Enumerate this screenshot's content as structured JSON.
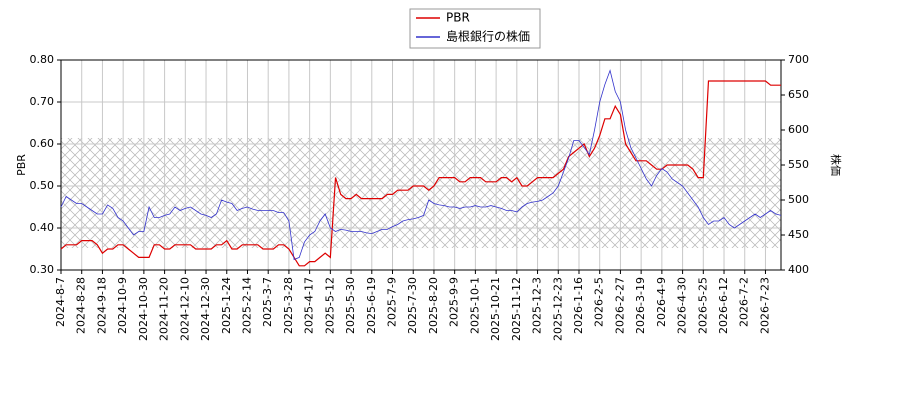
{
  "chart_data": {
    "type": "line",
    "ylabel": "PBR",
    "y2label": "株価",
    "legend": "top",
    "grid": true,
    "ylim": [
      0.3,
      0.8
    ],
    "yticks": [
      {
        "value": 0.3,
        "label": "0.30"
      },
      {
        "value": 0.4,
        "label": "0.40"
      },
      {
        "value": 0.5,
        "label": "0.50"
      },
      {
        "value": 0.6,
        "label": "0.60"
      },
      {
        "value": 0.7,
        "label": "0.70"
      },
      {
        "value": 0.8,
        "label": "0.80"
      }
    ],
    "y2lim": [
      400,
      700
    ],
    "y2ticks": [
      400,
      450,
      500,
      550,
      600,
      650,
      700
    ],
    "x": [
      "2024-8-7",
      null,
      null,
      null,
      "2024-8-28",
      null,
      null,
      null,
      "2024-9-18",
      null,
      null,
      null,
      "2024-10-9",
      null,
      null,
      null,
      "2024-10-30",
      null,
      null,
      null,
      "2024-11-20",
      null,
      null,
      null,
      "2024-12-10",
      null,
      null,
      null,
      "2024-12-30",
      null,
      null,
      null,
      "2025-1-24",
      null,
      null,
      null,
      "2025-2-14",
      null,
      null,
      null,
      "2025-3-7",
      null,
      null,
      null,
      "2025-3-28",
      null,
      null,
      null,
      "2025-4-17",
      null,
      null,
      null,
      "2025-5-12",
      null,
      null,
      null,
      "2025-5-30",
      null,
      null,
      null,
      "2025-6-19",
      null,
      null,
      null,
      "2025-7-9",
      null,
      null,
      null,
      "2025-7-30",
      null,
      null,
      null,
      "2025-8-20",
      null,
      null,
      null,
      "2025-9-9",
      null,
      null,
      null,
      "2025-10-1",
      null,
      null,
      null,
      "2025-10-21",
      null,
      null,
      null,
      "2025-11-12",
      null,
      null,
      null,
      "2025-12-3",
      null,
      null,
      null,
      "2025-12-23",
      null,
      null,
      null,
      "2026-1-16",
      null,
      null,
      null,
      "2026-2-5",
      null,
      null,
      null,
      "2026-2-27",
      null,
      null,
      null,
      "2026-3-19",
      null,
      null,
      null,
      "2026-4-9",
      null,
      null,
      null,
      "2026-4-30",
      null,
      null,
      null,
      "2026-5-25",
      null,
      null,
      null,
      "2026-6-12",
      null,
      null,
      null,
      "2026-7-2",
      null,
      null,
      null,
      "2026-7-23",
      null,
      null,
      null
    ],
    "series": [
      {
        "name": "PBR",
        "color": "#dd0000",
        "axis": "y",
        "values": [
          0.35,
          0.36,
          0.36,
          0.36,
          0.37,
          0.37,
          0.37,
          0.36,
          0.34,
          0.35,
          0.35,
          0.36,
          0.36,
          0.35,
          0.34,
          0.33,
          0.33,
          0.33,
          0.36,
          0.36,
          0.35,
          0.35,
          0.36,
          0.36,
          0.36,
          0.36,
          0.35,
          0.35,
          0.35,
          0.35,
          0.36,
          0.36,
          0.37,
          0.35,
          0.35,
          0.36,
          0.36,
          0.36,
          0.36,
          0.35,
          0.35,
          0.35,
          0.36,
          0.36,
          0.35,
          0.33,
          0.31,
          0.31,
          0.32,
          0.32,
          0.33,
          0.34,
          0.33,
          0.52,
          0.48,
          0.47,
          0.47,
          0.48,
          0.47,
          0.47,
          0.47,
          0.47,
          0.47,
          0.48,
          0.48,
          0.49,
          0.49,
          0.49,
          0.5,
          0.5,
          0.5,
          0.49,
          0.5,
          0.52,
          0.52,
          0.52,
          0.52,
          0.51,
          0.51,
          0.52,
          0.52,
          0.52,
          0.51,
          0.51,
          0.51,
          0.52,
          0.52,
          0.51,
          0.52,
          0.5,
          0.5,
          0.51,
          0.52,
          0.52,
          0.52,
          0.52,
          0.53,
          0.54,
          0.57,
          0.58,
          0.59,
          0.6,
          0.57,
          0.59,
          0.62,
          0.66,
          0.66,
          0.69,
          0.67,
          0.6,
          0.58,
          0.56,
          0.56,
          0.56,
          0.55,
          0.54,
          0.54,
          0.55,
          0.55,
          0.55,
          0.55,
          0.55,
          0.54,
          0.52,
          0.52,
          0.75,
          0.75,
          0.75,
          0.75,
          0.75,
          0.75,
          0.75,
          0.75,
          0.75,
          0.75,
          0.75,
          0.75,
          0.74,
          0.74,
          0.74
        ]
      },
      {
        "name": "島根銀行の株価",
        "color": "#3333cc",
        "axis": "y2",
        "values": [
          490,
          505,
          500,
          495,
          495,
          490,
          485,
          480,
          480,
          493,
          488,
          475,
          470,
          460,
          450,
          455,
          455,
          490,
          475,
          475,
          478,
          480,
          490,
          485,
          488,
          490,
          485,
          480,
          478,
          475,
          480,
          500,
          497,
          495,
          485,
          488,
          490,
          487,
          485,
          485,
          485,
          485,
          482,
          482,
          470,
          415,
          418,
          440,
          450,
          455,
          470,
          480,
          460,
          455,
          458,
          457,
          455,
          455,
          455,
          453,
          452,
          455,
          458,
          458,
          462,
          465,
          470,
          472,
          473,
          475,
          478,
          500,
          495,
          493,
          492,
          490,
          490,
          488,
          490,
          490,
          492,
          490,
          490,
          492,
          490,
          488,
          485,
          485,
          483,
          490,
          495,
          497,
          498,
          500,
          505,
          510,
          520,
          540,
          560,
          585,
          585,
          575,
          565,
          600,
          640,
          665,
          685,
          655,
          640,
          600,
          575,
          560,
          545,
          530,
          520,
          535,
          545,
          540,
          530,
          525,
          520,
          510,
          500,
          490,
          475,
          465,
          470,
          470,
          475,
          465,
          460,
          465,
          470,
          475,
          480,
          475,
          480,
          485,
          480,
          478
        ]
      }
    ]
  }
}
